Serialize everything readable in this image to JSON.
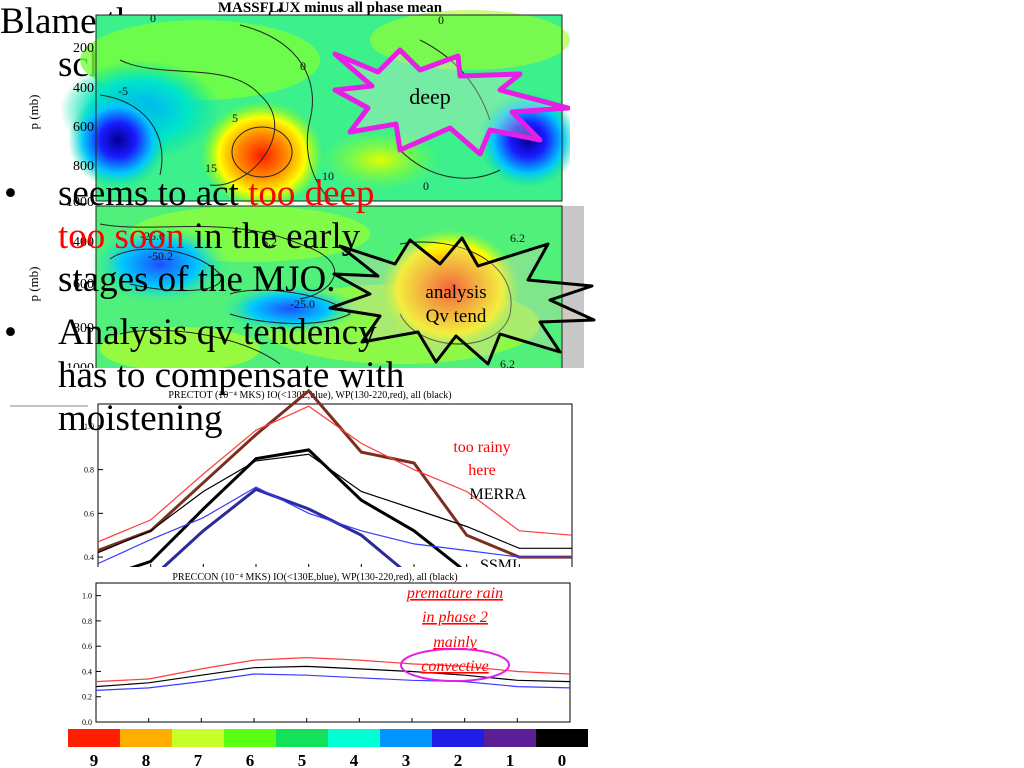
{
  "massflux_panel": {
    "title": "MASSFLUX minus all phase mean",
    "ylabel": "p (mb)",
    "yticks": [
      "200",
      "400",
      "600",
      "800",
      "1000"
    ],
    "contour_labels": [
      "0",
      "5",
      "-5",
      "15",
      "10",
      "0",
      "0",
      "0"
    ],
    "callout": "deep"
  },
  "qv_panel": {
    "ylabel": "p (mb)",
    "yticks": [
      "400",
      "600",
      "800",
      "1000"
    ],
    "contour_labels": [
      "-25.0",
      "-50.2",
      "6.2",
      "-25.0",
      "6.2",
      "6.2"
    ],
    "callout_lines": [
      "analysis",
      "Qv tend"
    ]
  },
  "chart_data": [
    {
      "type": "line",
      "title": "PRECTOT (10⁻⁴ MKS) IO(<130E,blue), WP(130-220,red), all (black)",
      "x": [
        9,
        8,
        7,
        6,
        5,
        4,
        3,
        2,
        1,
        0
      ],
      "xlim": [
        9,
        0
      ],
      "ylim": [
        0.35,
        1.1
      ],
      "yticks": [
        "0.4",
        "0.6",
        "0.8",
        "1.0"
      ],
      "series": [
        {
          "name": "IO(<130E,blue)",
          "color": "#3b3bff",
          "values": [
            0.37,
            0.48,
            0.58,
            0.72,
            0.6,
            0.52,
            0.46,
            0.43,
            0.4,
            0.4
          ]
        },
        {
          "name": "WP(130-220,red)",
          "color": "#ff3b3b",
          "values": [
            0.47,
            0.57,
            0.78,
            0.98,
            1.09,
            0.92,
            0.8,
            0.7,
            0.52,
            0.5
          ]
        },
        {
          "name": "all (black)",
          "color": "#000000",
          "values": [
            0.42,
            0.52,
            0.7,
            0.84,
            0.87,
            0.7,
            0.62,
            0.54,
            0.44,
            0.44
          ]
        }
      ],
      "overlay_series": [
        {
          "color": "#7a2f1f",
          "values": [
            0.43,
            0.52,
            0.74,
            0.96,
            1.16,
            0.88,
            0.83,
            0.5,
            0.4,
            0.4
          ]
        },
        {
          "color": "#000000",
          "values": [
            0.3,
            0.38,
            0.62,
            0.85,
            0.89,
            0.66,
            0.52,
            0.33,
            0.3,
            0.3
          ]
        },
        {
          "color": "#2a2a9a",
          "values": [
            0.2,
            0.3,
            0.52,
            0.71,
            0.62,
            0.5,
            0.3,
            0.2,
            0.2,
            0.2
          ]
        }
      ],
      "annotations": [
        "too rainy",
        "here",
        "MERRA",
        "SSMI"
      ]
    },
    {
      "type": "line",
      "title": "PRECCON (10⁻⁴ MKS) IO(<130E,blue), WP(130-220,red), all (black)",
      "x": [
        9,
        8,
        7,
        6,
        5,
        4,
        3,
        2,
        1,
        0
      ],
      "xlim": [
        9,
        0
      ],
      "ylim": [
        0.0,
        1.1
      ],
      "yticks": [
        "0.0",
        "0.2",
        "0.4",
        "0.6",
        "0.8",
        "1.0"
      ],
      "series": [
        {
          "name": "IO(<130E,blue)",
          "color": "#3b3bff",
          "values": [
            0.25,
            0.27,
            0.32,
            0.38,
            0.37,
            0.35,
            0.33,
            0.32,
            0.28,
            0.27
          ]
        },
        {
          "name": "WP(130-220,red)",
          "color": "#ff3b3b",
          "values": [
            0.32,
            0.34,
            0.42,
            0.49,
            0.51,
            0.49,
            0.46,
            0.44,
            0.4,
            0.38
          ]
        },
        {
          "name": "all (black)",
          "color": "#000000",
          "values": [
            0.28,
            0.31,
            0.37,
            0.43,
            0.44,
            0.42,
            0.4,
            0.37,
            0.33,
            0.32
          ]
        }
      ],
      "annotations": [
        "premature rain",
        "in phase 2",
        "mainly",
        "convective"
      ]
    }
  ],
  "phase_bar": {
    "labels": [
      "9",
      "8",
      "7",
      "6",
      "5",
      "4",
      "3",
      "2",
      "1",
      "0"
    ],
    "colors": [
      "#ff1e00",
      "#ffae00",
      "#c8ff28",
      "#5aff14",
      "#14e15a",
      "#00ffd2",
      "#0094ff",
      "#1e1ee6",
      "#5a1e96",
      "#000000"
    ]
  },
  "slide_text": {
    "heading_line1": "Blame the convection",
    "heading_line2": "scheme!",
    "bullet_dot": "•",
    "bullet1_pre": " seems to act ",
    "bullet1_red": "too deep too soon",
    "bullet1_post": " in the early stages of the MJO.",
    "bullet2": "Analysis qv tendency has to compensate with moistening"
  }
}
